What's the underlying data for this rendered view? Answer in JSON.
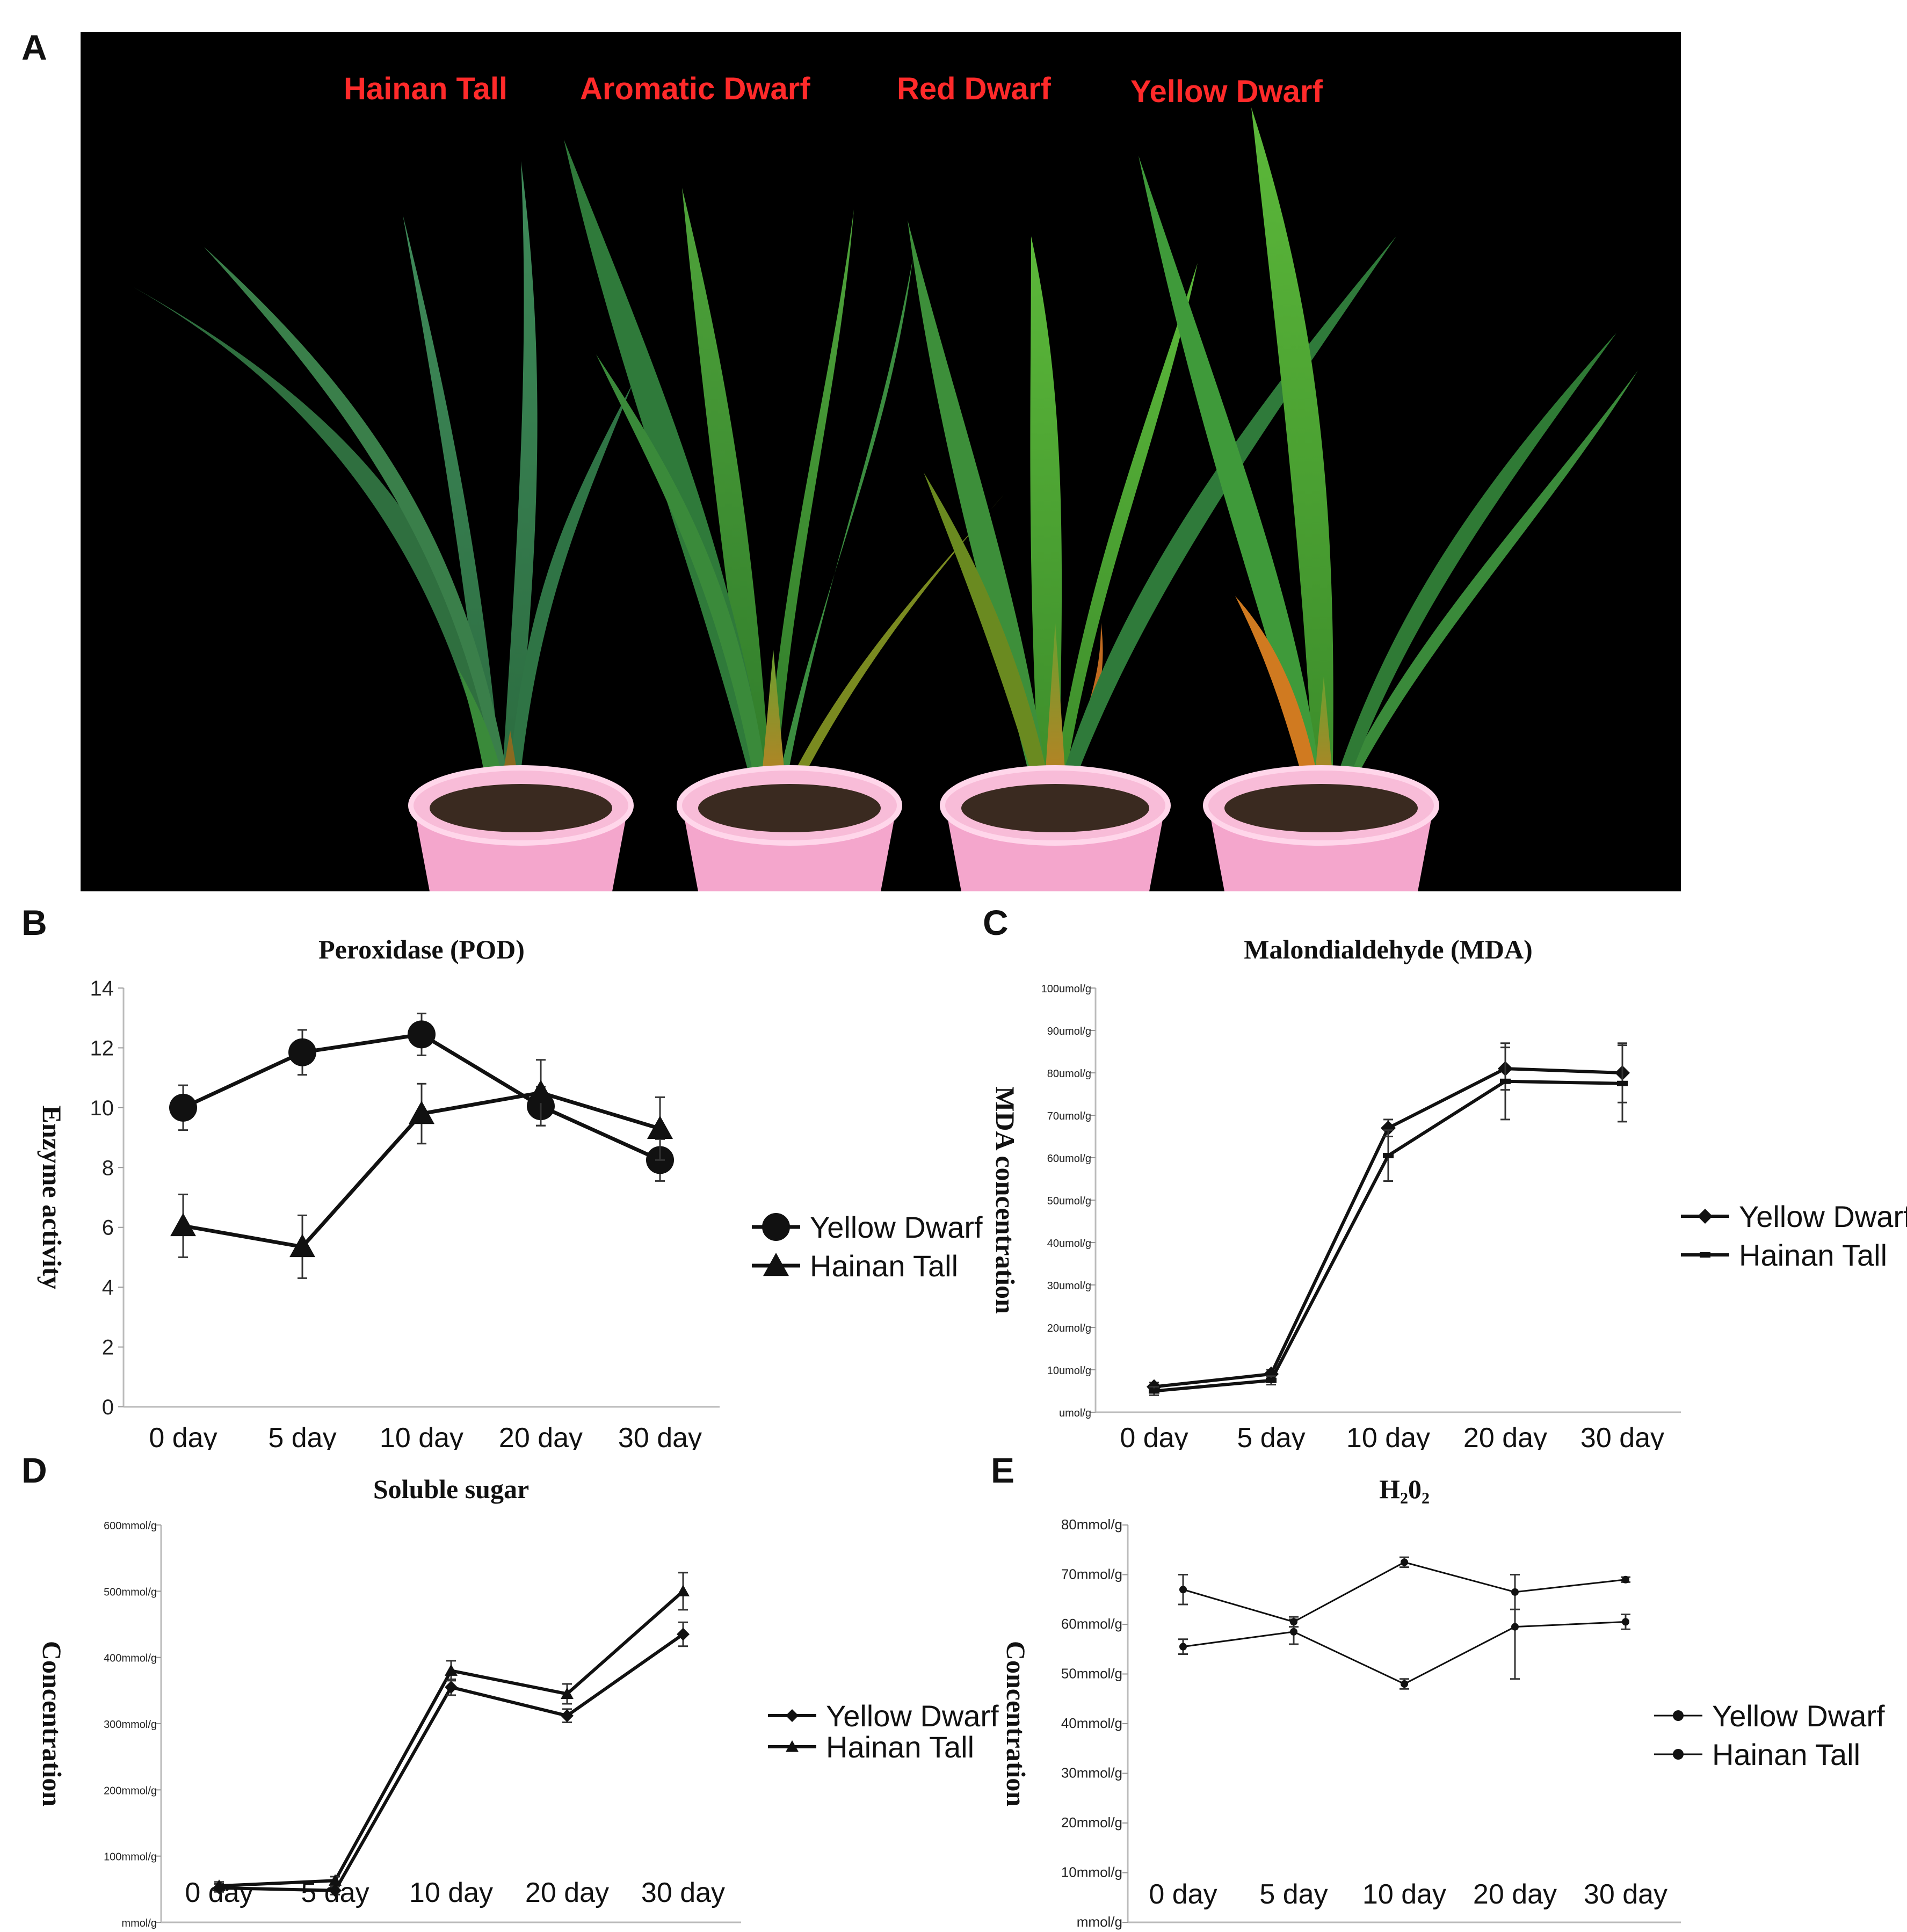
{
  "panel_labels": [
    "A",
    "B",
    "C",
    "D",
    "E"
  ],
  "photo": {
    "variety_labels": [
      "Hainan Tall",
      "Aromatic Dwarf",
      "Red Dwarf",
      "Yellow Dwarf"
    ],
    "label_color": "#ff2a2a",
    "background": "#000000",
    "pot_color": "#f4a6cc"
  },
  "chart_data": [
    {
      "panel": "B",
      "type": "line",
      "title": "Peroxidase (POD)",
      "ylabel": "Enzyme activity",
      "xlabel": "",
      "categories": [
        "0 day",
        "5 day",
        "10 day",
        "20 day",
        "30 day"
      ],
      "ylim": [
        0,
        14
      ],
      "yticks": [
        "0",
        "2",
        "4",
        "6",
        "8",
        "10",
        "12",
        "14"
      ],
      "series": [
        {
          "name": "Yellow Dwarf",
          "marker": "circle",
          "values": [
            10.0,
            11.85,
            12.45,
            10.05,
            8.25
          ],
          "errors": [
            0.75,
            0.75,
            0.7,
            0.65,
            0.7
          ]
        },
        {
          "name": "Hainan Tall",
          "marker": "triangle",
          "values": [
            6.05,
            5.35,
            9.8,
            10.5,
            9.3
          ],
          "errors": [
            1.05,
            1.05,
            1.0,
            1.1,
            1.05
          ]
        }
      ]
    },
    {
      "panel": "C",
      "type": "line",
      "title": "Malondialdehyde (MDA)",
      "ylabel": "MDA concentration",
      "xlabel": "",
      "categories": [
        "0 day",
        "5 day",
        "10 day",
        "20 day",
        "30 day"
      ],
      "ylim": [
        0,
        100
      ],
      "yticks": [
        "umol/g",
        "10umol/g",
        "20umol/g",
        "30umol/g",
        "40umol/g",
        "50umol/g",
        "60umol/g",
        "70umol/g",
        "80umol/g",
        "90umol/g",
        "100umol/g"
      ],
      "series": [
        {
          "name": "Yellow Dwarf",
          "marker": "diamond",
          "values": [
            6,
            9,
            67,
            81,
            80
          ],
          "errors": [
            1,
            1,
            2,
            5,
            7
          ]
        },
        {
          "name": "Hainan Tall",
          "marker": "dash",
          "values": [
            5,
            7.5,
            60.5,
            78,
            77.5
          ],
          "errors": [
            1,
            1,
            6,
            9,
            9
          ]
        }
      ]
    },
    {
      "panel": "D",
      "type": "line",
      "title": "Soluble sugar",
      "ylabel": "Concentration",
      "xlabel": "",
      "categories": [
        "0 day",
        "5 day",
        "10 day",
        "20 day",
        "30 day"
      ],
      "ylim": [
        0,
        600
      ],
      "yticks": [
        "mmol/g",
        "100mmol/g",
        "200mmol/g",
        "300mmol/g",
        "400mmol/g",
        "500mmol/g",
        "600mmol/g"
      ],
      "series": [
        {
          "name": "Yellow Dwarf",
          "marker": "diamond",
          "values": [
            52,
            48,
            355,
            312,
            435
          ],
          "errors": [
            6,
            6,
            12,
            10,
            18
          ]
        },
        {
          "name": "Hainan Tall",
          "marker": "triangle",
          "values": [
            55,
            63,
            380,
            345,
            500
          ],
          "errors": [
            6,
            6,
            15,
            15,
            28
          ]
        }
      ]
    },
    {
      "panel": "E",
      "type": "line",
      "title": "H₂0₂",
      "ylabel": "Concentration",
      "xlabel": "",
      "categories": [
        "0 day",
        "5 day",
        "10 day",
        "20 day",
        "30 day"
      ],
      "ylim": [
        0,
        80
      ],
      "yticks": [
        "mmol/g",
        "10mmol/g",
        "20mmol/g",
        "30mmol/g",
        "40mmol/g",
        "50mmol/g",
        "60mmol/g",
        "70mmol/g",
        "80mmol/g"
      ],
      "series": [
        {
          "name": "Yellow Dwarf",
          "marker": "dot",
          "values": [
            55.5,
            58.5,
            48,
            59.5,
            60.5
          ],
          "errors": [
            1.5,
            2.5,
            1,
            10.5,
            1.5
          ]
        },
        {
          "name": "Hainan Tall",
          "marker": "dot",
          "values": [
            67,
            60.5,
            72.5,
            66.5,
            69
          ],
          "errors": [
            3,
            1,
            1,
            3.5,
            0.5
          ]
        }
      ]
    }
  ]
}
